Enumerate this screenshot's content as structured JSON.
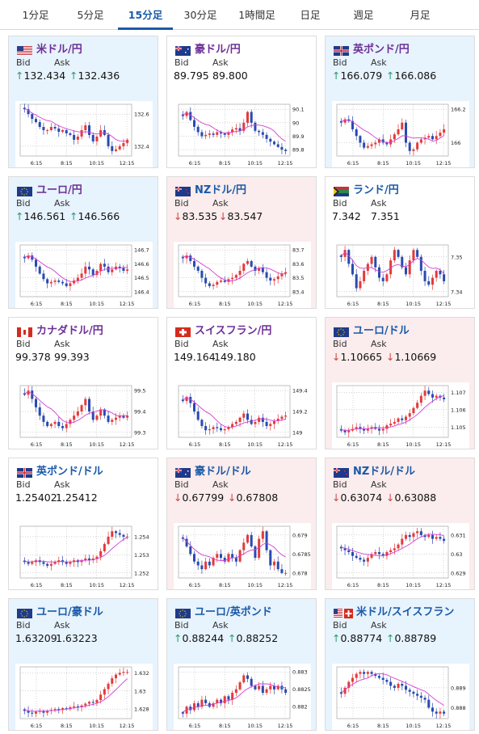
{
  "tabs": [
    {
      "label": "1分足",
      "active": false
    },
    {
      "label": "5分足",
      "active": false
    },
    {
      "label": "15分足",
      "active": true
    },
    {
      "label": "30分足",
      "active": false
    },
    {
      "label": "1時間足",
      "active": false
    },
    {
      "label": "日足",
      "active": false
    },
    {
      "label": "週足",
      "active": false
    },
    {
      "label": "月足",
      "active": false
    }
  ],
  "labels": {
    "bid": "Bid",
    "ask": "Ask"
  },
  "x_ticks": [
    "6:15",
    "8:15",
    "10:15",
    "12:15"
  ],
  "colors": {
    "up_bg": "#e7f3fd",
    "down_bg": "#fbeced",
    "up_arrow": "#2a9d6a",
    "down_arrow": "#d0453f",
    "bull_candle": "#e23b3b",
    "bear_candle": "#2a4ab0",
    "ma_line": "#d33dd3"
  },
  "pairs": [
    {
      "name": "米ドル/円",
      "flag": "us-flag",
      "title_color": "purple",
      "status": "up",
      "bid": "132.434",
      "ask": "132.436",
      "bid_dir": "up",
      "ask_dir": "up",
      "y_ticks": [
        "132.6",
        "132.4"
      ],
      "closes": [
        132.63,
        132.6,
        132.57,
        132.55,
        132.52,
        132.5,
        132.5,
        132.52,
        132.51,
        132.49,
        132.5,
        132.48,
        132.47,
        132.44,
        132.46,
        132.5,
        132.53,
        132.47,
        132.43,
        132.46,
        132.5,
        132.47,
        132.4,
        132.37,
        132.38,
        132.4,
        132.42,
        132.44
      ]
    },
    {
      "name": "豪ドル/円",
      "flag": "au-flag",
      "title_color": "purple",
      "status": "flat",
      "bid": "89.795",
      "ask": "89.800",
      "bid_dir": "none",
      "ask_dir": "none",
      "y_ticks": [
        "90.1",
        "90",
        "89.9",
        "89.8"
      ],
      "closes": [
        90.05,
        90.08,
        90.02,
        89.97,
        89.93,
        89.9,
        89.91,
        89.92,
        89.91,
        89.93,
        89.92,
        89.91,
        89.93,
        89.95,
        89.96,
        89.94,
        90.0,
        90.08,
        90.0,
        89.94,
        89.93,
        89.91,
        89.88,
        89.86,
        89.84,
        89.82,
        89.8,
        89.79
      ]
    },
    {
      "name": "英ポンド/円",
      "flag": "gb-flag",
      "title_color": "purple",
      "status": "up",
      "bid": "166.079",
      "ask": "166.086",
      "bid_dir": "up",
      "ask_dir": "up",
      "y_ticks": [
        "166.2",
        "166"
      ],
      "closes": [
        166.12,
        166.14,
        166.13,
        166.08,
        166.04,
        166.0,
        165.97,
        165.98,
        165.99,
        166.0,
        166.02,
        166.0,
        165.99,
        166.02,
        166.05,
        166.08,
        166.12,
        166.0,
        165.95,
        165.96,
        166.0,
        166.02,
        166.03,
        166.04,
        166.02,
        166.04,
        166.06,
        166.08
      ]
    },
    {
      "name": "ユーロ/円",
      "flag": "eu-flag",
      "title_color": "purple",
      "status": "up",
      "bid": "146.561",
      "ask": "146.566",
      "bid_dir": "up",
      "ask_dir": "up",
      "y_ticks": [
        "146.7",
        "146.6",
        "146.5",
        "146.4"
      ],
      "closes": [
        146.64,
        146.66,
        146.63,
        146.58,
        146.53,
        146.49,
        146.46,
        146.47,
        146.48,
        146.47,
        146.46,
        146.44,
        146.46,
        146.48,
        146.5,
        146.53,
        146.58,
        146.56,
        146.52,
        146.55,
        146.6,
        146.58,
        146.54,
        146.56,
        146.58,
        146.57,
        146.55,
        146.56
      ]
    },
    {
      "name": "NZドル/円",
      "flag": "nz-flag",
      "title_color": "blue",
      "status": "down",
      "bid": "83.535",
      "ask": "83.547",
      "bid_dir": "down",
      "ask_dir": "down",
      "y_ticks": [
        "83.7",
        "83.6",
        "83.5",
        "83.4"
      ],
      "closes": [
        83.64,
        83.66,
        83.62,
        83.58,
        83.55,
        83.5,
        83.46,
        83.44,
        83.45,
        83.47,
        83.48,
        83.47,
        83.49,
        83.5,
        83.52,
        83.55,
        83.6,
        83.62,
        83.58,
        83.55,
        83.57,
        83.54,
        83.5,
        83.48,
        83.49,
        83.51,
        83.53,
        83.54
      ]
    },
    {
      "name": "ランド/円",
      "flag": "za-flag",
      "title_color": "blue",
      "status": "flat",
      "bid": "7.342",
      "ask": "7.351",
      "bid_dir": "none",
      "ask_dir": "none",
      "y_ticks": [
        "7.35",
        "7.34"
      ],
      "closes": [
        7.35,
        7.352,
        7.348,
        7.345,
        7.341,
        7.343,
        7.346,
        7.348,
        7.35,
        7.347,
        7.344,
        7.343,
        7.345,
        7.349,
        7.352,
        7.35,
        7.347,
        7.345,
        7.349,
        7.352,
        7.35,
        7.346,
        7.343,
        7.342,
        7.344,
        7.346,
        7.345,
        7.343
      ]
    },
    {
      "name": "カナダドル/円",
      "flag": "ca-flag",
      "title_color": "purple",
      "status": "flat",
      "bid": "99.378",
      "ask": "99.393",
      "bid_dir": "none",
      "ask_dir": "none",
      "y_ticks": [
        "99.5",
        "99.4",
        "99.3"
      ],
      "closes": [
        99.48,
        99.5,
        99.46,
        99.42,
        99.38,
        99.35,
        99.33,
        99.34,
        99.35,
        99.33,
        99.32,
        99.34,
        99.36,
        99.38,
        99.4,
        99.43,
        99.46,
        99.4,
        99.36,
        99.38,
        99.41,
        99.38,
        99.35,
        99.36,
        99.37,
        99.38,
        99.37,
        99.38
      ]
    },
    {
      "name": "スイスフラン/円",
      "flag": "ch-flag",
      "title_color": "purple",
      "status": "flat",
      "bid": "149.164",
      "ask": "149.180",
      "bid_dir": "none",
      "ask_dir": "none",
      "y_ticks": [
        "149.4",
        "149.2",
        "149"
      ],
      "closes": [
        149.3,
        149.34,
        149.28,
        149.2,
        149.12,
        149.06,
        149.02,
        149.03,
        149.05,
        149.04,
        149.02,
        149.03,
        149.05,
        149.08,
        149.1,
        149.14,
        149.18,
        149.12,
        149.08,
        149.1,
        149.14,
        149.1,
        149.06,
        149.08,
        149.11,
        149.13,
        149.15,
        149.16
      ]
    },
    {
      "name": "ユーロ/ドル",
      "flag": "eu-flag",
      "title_color": "blue",
      "status": "down",
      "bid": "1.10665",
      "ask": "1.10669",
      "bid_dir": "down",
      "ask_dir": "down",
      "y_ticks": [
        "1.107",
        "1.106",
        "1.105"
      ],
      "closes": [
        1.1048,
        1.1047,
        1.1048,
        1.1049,
        1.105,
        1.1049,
        1.1048,
        1.1049,
        1.105,
        1.1049,
        1.1048,
        1.1049,
        1.1051,
        1.1052,
        1.1053,
        1.1055,
        1.1054,
        1.1056,
        1.1058,
        1.1061,
        1.1064,
        1.1068,
        1.1071,
        1.1069,
        1.1067,
        1.1068,
        1.1067,
        1.1066
      ]
    },
    {
      "name": "英ポンド/ドル",
      "flag": "gb-flag",
      "title_color": "blue",
      "status": "flat",
      "bid": "1.25402",
      "ask": "1.25412",
      "bid_dir": "none",
      "ask_dir": "none",
      "y_ticks": [
        "1.254",
        "1.253",
        "1.252"
      ],
      "closes": [
        1.2526,
        1.2525,
        1.2526,
        1.2527,
        1.2526,
        1.2525,
        1.2524,
        1.2525,
        1.2526,
        1.2527,
        1.2526,
        1.2525,
        1.2526,
        1.2527,
        1.2526,
        1.2527,
        1.2528,
        1.2527,
        1.2528,
        1.2529,
        1.2532,
        1.2536,
        1.254,
        1.2543,
        1.2542,
        1.2541,
        1.254,
        1.254
      ]
    },
    {
      "name": "豪ドル/ドル",
      "flag": "au-flag",
      "title_color": "blue",
      "status": "down",
      "bid": "0.67799",
      "ask": "0.67808",
      "bid_dir": "down",
      "ask_dir": "down",
      "y_ticks": [
        "0.679",
        "0.6785",
        "0.678"
      ],
      "closes": [
        0.6789,
        0.6787,
        0.6785,
        0.6783,
        0.6782,
        0.6781,
        0.6783,
        0.6782,
        0.6784,
        0.6785,
        0.6784,
        0.6783,
        0.6785,
        0.6784,
        0.6783,
        0.6786,
        0.6788,
        0.679,
        0.6787,
        0.6784,
        0.6789,
        0.6791,
        0.6786,
        0.6782,
        0.6783,
        0.6781,
        0.678,
        0.678
      ]
    },
    {
      "name": "NZドル/ドル",
      "flag": "nz-flag",
      "title_color": "blue",
      "status": "down",
      "bid": "0.63074",
      "ask": "0.63088",
      "bid_dir": "down",
      "ask_dir": "down",
      "y_ticks": [
        "0.631",
        "0.63",
        "0.629"
      ],
      "closes": [
        0.6303,
        0.6302,
        0.6301,
        0.6299,
        0.6298,
        0.6297,
        0.6296,
        0.6298,
        0.63,
        0.6301,
        0.63,
        0.6299,
        0.6301,
        0.6302,
        0.6303,
        0.6305,
        0.6308,
        0.631,
        0.6309,
        0.6311,
        0.6312,
        0.631,
        0.6309,
        0.631,
        0.6308,
        0.6309,
        0.6308,
        0.6307
      ]
    },
    {
      "name": "ユーロ/豪ドル",
      "flag": "eu-flag",
      "title_color": "blue",
      "status": "up",
      "bid": "1.63209",
      "ask": "1.63223",
      "bid_dir": "none",
      "ask_dir": "none",
      "y_ticks": [
        "1.632",
        "1.63",
        "1.628"
      ],
      "closes": [
        1.6278,
        1.6276,
        1.6275,
        1.6277,
        1.6278,
        1.6276,
        1.6278,
        1.6279,
        1.628,
        1.6279,
        1.6281,
        1.628,
        1.6282,
        1.6283,
        1.6282,
        1.6284,
        1.6286,
        1.6288,
        1.6287,
        1.629,
        1.6296,
        1.6302,
        1.6308,
        1.6314,
        1.6318,
        1.632,
        1.6321,
        1.6321
      ]
    },
    {
      "name": "ユーロ/英ポンド",
      "flag": "eu-flag",
      "title_color": "blue",
      "status": "up",
      "bid": "0.88244",
      "ask": "0.88252",
      "bid_dir": "up",
      "ask_dir": "up",
      "y_ticks": [
        "0.883",
        "0.8825",
        "0.882"
      ],
      "closes": [
        0.8818,
        0.882,
        0.8819,
        0.8821,
        0.882,
        0.8822,
        0.8821,
        0.882,
        0.8821,
        0.8822,
        0.8821,
        0.8823,
        0.8822,
        0.8824,
        0.8825,
        0.8827,
        0.8829,
        0.8828,
        0.8826,
        0.8825,
        0.8826,
        0.8824,
        0.8825,
        0.8826,
        0.8825,
        0.8826,
        0.8825,
        0.8824
      ]
    },
    {
      "name": "米ドル/スイスフラン",
      "flag": "us-ch-flag",
      "title_color": "blue",
      "status": "up",
      "bid": "0.88774",
      "ask": "0.88789",
      "bid_dir": "up",
      "ask_dir": "up",
      "y_ticks": [
        "0.889",
        "0.888"
      ],
      "closes": [
        0.8887,
        0.889,
        0.8893,
        0.8895,
        0.8897,
        0.8898,
        0.8897,
        0.8898,
        0.8897,
        0.8896,
        0.8895,
        0.8894,
        0.8893,
        0.8891,
        0.889,
        0.8892,
        0.8891,
        0.8889,
        0.8888,
        0.8887,
        0.8886,
        0.8885,
        0.8884,
        0.888,
        0.8878,
        0.8877,
        0.8878,
        0.8877
      ]
    }
  ]
}
